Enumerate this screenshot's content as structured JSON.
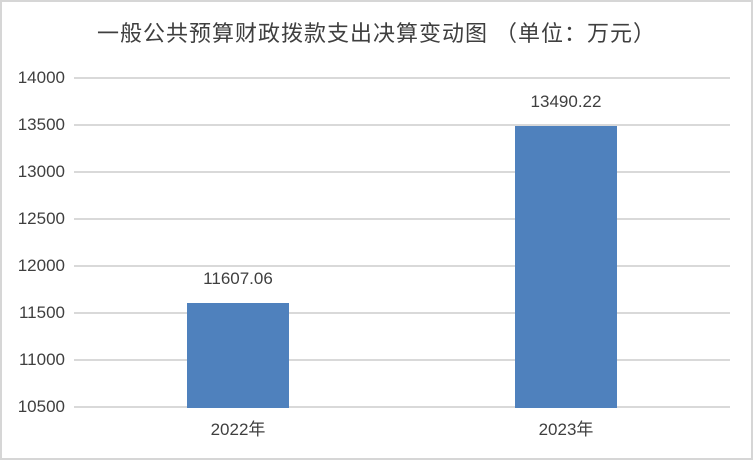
{
  "chart_data": {
    "type": "bar",
    "title": "一般公共预算财政拨款支出决算变动图 （单位：万元）",
    "categories": [
      "2022年",
      "2023年"
    ],
    "values": [
      11607.06,
      13490.22
    ],
    "data_labels": [
      "11607.06",
      "13490.22"
    ],
    "ylim": [
      10500,
      14000
    ],
    "yticks": [
      10500,
      11000,
      11500,
      12000,
      12500,
      13000,
      13500,
      14000
    ],
    "ytick_labels": [
      "10500",
      "11000",
      "11500",
      "12000",
      "12500",
      "13000",
      "13500",
      "14000"
    ],
    "grid": true,
    "legend": false,
    "bar_color": "#4F81BD",
    "gridline_color": "#D9D9D9",
    "text_color": "#3F3F3F"
  }
}
